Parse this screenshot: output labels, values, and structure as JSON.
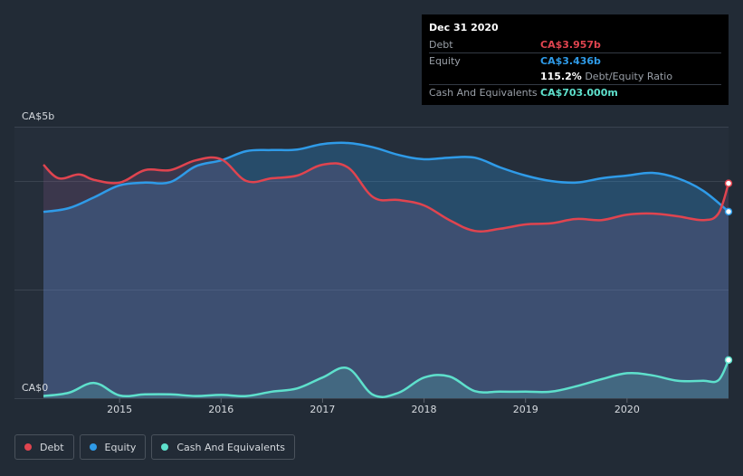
{
  "tooltip": {
    "date": "Dec 31 2020",
    "rows": [
      {
        "label": "Debt",
        "value": "CA$3.957b",
        "color": "#e0444f"
      },
      {
        "label": "Equity",
        "value": "CA$3.436b",
        "color": "#2f9be8"
      },
      {
        "ratio_value": "115.2%",
        "ratio_label": "Debt/Equity Ratio"
      },
      {
        "label": "Cash And Equivalents",
        "value": "CA$703.000m",
        "color": "#5ee0cc"
      }
    ]
  },
  "legend": [
    {
      "label": "Debt",
      "color": "#e0444f"
    },
    {
      "label": "Equity",
      "color": "#2f9be8"
    },
    {
      "label": "Cash And Equivalents",
      "color": "#5ee0cc"
    }
  ],
  "chart_data": {
    "type": "area",
    "y_top_label": "CA$5b",
    "y_bottom_label": "CA$0",
    "ylim": [
      0,
      5
    ],
    "xlim": [
      2014.25,
      2021.0
    ],
    "x_ticks": [
      "2015",
      "2016",
      "2017",
      "2018",
      "2019",
      "2020"
    ],
    "grid": true,
    "series": [
      {
        "name": "Debt",
        "color": "#e0444f",
        "x": [
          2014.25,
          2014.4,
          2014.6,
          2014.75,
          2015.0,
          2015.25,
          2015.5,
          2015.75,
          2016.0,
          2016.25,
          2016.5,
          2016.75,
          2017.0,
          2017.25,
          2017.5,
          2017.75,
          2018.0,
          2018.25,
          2018.5,
          2018.75,
          2019.0,
          2019.25,
          2019.5,
          2019.75,
          2020.0,
          2020.25,
          2020.5,
          2020.75,
          2020.9,
          2021.0
        ],
        "values": [
          4.3,
          4.05,
          4.12,
          4.02,
          3.97,
          4.2,
          4.2,
          4.38,
          4.4,
          4.0,
          4.05,
          4.1,
          4.3,
          4.25,
          3.7,
          3.65,
          3.55,
          3.28,
          3.08,
          3.12,
          3.2,
          3.22,
          3.3,
          3.28,
          3.38,
          3.4,
          3.35,
          3.28,
          3.4,
          3.957
        ]
      },
      {
        "name": "Equity",
        "color": "#2f9be8",
        "x": [
          2014.25,
          2014.5,
          2014.75,
          2015.0,
          2015.25,
          2015.5,
          2015.75,
          2016.0,
          2016.25,
          2016.5,
          2016.75,
          2017.0,
          2017.25,
          2017.5,
          2017.75,
          2018.0,
          2018.25,
          2018.5,
          2018.75,
          2019.0,
          2019.25,
          2019.5,
          2019.75,
          2020.0,
          2020.25,
          2020.5,
          2020.75,
          2021.0
        ],
        "values": [
          3.43,
          3.5,
          3.7,
          3.92,
          3.97,
          3.98,
          4.27,
          4.38,
          4.55,
          4.57,
          4.58,
          4.68,
          4.7,
          4.62,
          4.48,
          4.4,
          4.43,
          4.43,
          4.25,
          4.1,
          4.0,
          3.97,
          4.05,
          4.1,
          4.15,
          4.05,
          3.82,
          3.436
        ]
      },
      {
        "name": "Cash And Equivalents",
        "color": "#5ee0cc",
        "x": [
          2014.25,
          2014.5,
          2014.75,
          2015.0,
          2015.25,
          2015.5,
          2015.75,
          2016.0,
          2016.25,
          2016.5,
          2016.75,
          2017.0,
          2017.25,
          2017.5,
          2017.75,
          2018.0,
          2018.25,
          2018.5,
          2018.75,
          2019.0,
          2019.25,
          2019.5,
          2019.75,
          2020.0,
          2020.25,
          2020.5,
          2020.75,
          2020.9,
          2021.0
        ],
        "values": [
          0.04,
          0.1,
          0.28,
          0.05,
          0.07,
          0.07,
          0.04,
          0.06,
          0.04,
          0.12,
          0.18,
          0.38,
          0.55,
          0.06,
          0.1,
          0.38,
          0.4,
          0.13,
          0.12,
          0.12,
          0.12,
          0.22,
          0.35,
          0.46,
          0.42,
          0.32,
          0.32,
          0.33,
          0.703
        ]
      }
    ]
  }
}
